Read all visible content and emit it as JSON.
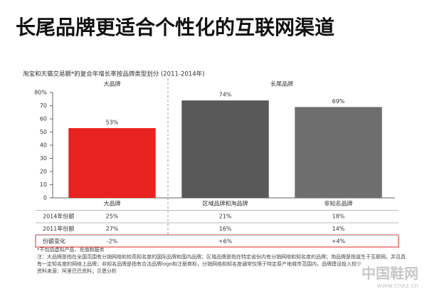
{
  "chart_data": {
    "type": "bar",
    "title": "长尾品牌更适合个性化的互联网渠道",
    "subtitle": "淘宝和天猫交易额*的复合年增长率按品牌类型划分 (2011-2014年)",
    "groups": [
      "大品牌",
      "长尾品牌"
    ],
    "categories": [
      "大品牌",
      "区域品牌和淘品牌",
      "非知名品牌"
    ],
    "values": [
      53,
      74,
      69
    ],
    "value_labels": [
      "53%",
      "74%",
      "69%"
    ],
    "colors": [
      "#e8231f",
      "#595959",
      "#6e6e6e"
    ],
    "ylim": [
      0,
      80
    ],
    "yticks": [
      0,
      10,
      20,
      30,
      40,
      50,
      60,
      70,
      {
        "value": 80,
        "label": "80%"
      }
    ],
    "grid": false
  },
  "table": {
    "rows": [
      [
        "2014年份额",
        "25%",
        "21%",
        "18%"
      ],
      [
        "2011年份额",
        "27%",
        "16%",
        "14%"
      ],
      [
        "份额变化",
        "-2%",
        "+6%",
        "+4%"
      ]
    ]
  },
  "notes": [
    "*不包括虚拟产品、充值和服务",
    "注：大品牌是指在全国范围有分销网络和较高知名度的国际品牌和国内品牌；区域品牌是指在特定省份内有分销网络和知名度的品牌；淘品牌是指诞生于互联网，并且具有一定知名度的网络上品牌；非知名品牌是指有合法品牌logo和注册商标，分销网络和知名度通常仅限于特定原产地城市范围内，品牌建设投入较少",
    "资料来源：阿里巴巴资料；贝恩分析"
  ],
  "watermark": [
    "中国鞋网",
    "www.cnxz.cn"
  ]
}
